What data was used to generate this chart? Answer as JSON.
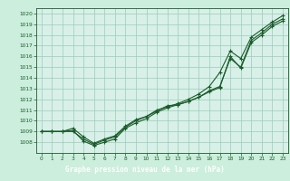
{
  "title": "Graphe pression niveau de la mer (hPa)",
  "xlim": [
    -0.5,
    23.5
  ],
  "ylim": [
    1007.0,
    1020.5
  ],
  "xticks": [
    0,
    1,
    2,
    3,
    4,
    5,
    6,
    7,
    8,
    9,
    10,
    11,
    12,
    13,
    14,
    15,
    16,
    17,
    18,
    19,
    20,
    21,
    22,
    23
  ],
  "yticks": [
    1008,
    1009,
    1010,
    1011,
    1012,
    1013,
    1014,
    1015,
    1016,
    1017,
    1018,
    1019,
    1020
  ],
  "bg_color": "#cceedd",
  "plot_bg": "#d8f0e8",
  "grid_color": "#99ccbb",
  "line_color": "#1a5c2a",
  "title_bg": "#2d7a3a",
  "title_fg": "#ffffff",
  "line1_x": [
    0,
    1,
    2,
    3,
    4,
    5,
    6,
    7,
    8,
    9,
    10,
    11,
    12,
    13,
    14,
    15,
    16,
    17,
    18,
    19,
    20,
    21,
    22,
    23
  ],
  "line1_y": [
    1009,
    1009,
    1009,
    1009,
    1008.3,
    1007.8,
    1008.2,
    1008.5,
    1009.4,
    1010.0,
    1010.4,
    1010.9,
    1011.4,
    1011.5,
    1011.8,
    1012.2,
    1012.8,
    1013.2,
    1015.8,
    1015.0,
    1017.5,
    1018.2,
    1019.0,
    1019.5
  ],
  "line2_x": [
    0,
    1,
    2,
    3,
    4,
    5,
    6,
    7,
    8,
    9,
    10,
    11,
    12,
    13,
    14,
    15,
    16,
    17,
    18,
    19,
    20,
    21,
    22,
    23
  ],
  "line2_y": [
    1009,
    1009,
    1009,
    1009.3,
    1008.5,
    1007.9,
    1008.3,
    1008.6,
    1009.5,
    1010.1,
    1010.4,
    1011.0,
    1011.3,
    1011.6,
    1012.0,
    1012.5,
    1013.2,
    1014.5,
    1016.5,
    1015.8,
    1017.8,
    1018.5,
    1019.2,
    1019.8
  ],
  "line3_x": [
    0,
    1,
    2,
    3,
    4,
    5,
    6,
    7,
    8,
    9,
    10,
    11,
    12,
    13,
    14,
    15,
    16,
    17,
    18,
    19,
    20,
    21,
    22,
    23
  ],
  "line3_y": [
    1009,
    1009,
    1009,
    1009.1,
    1008.1,
    1007.7,
    1008.0,
    1008.3,
    1009.3,
    1009.8,
    1010.2,
    1010.8,
    1011.2,
    1011.5,
    1011.8,
    1012.2,
    1012.7,
    1013.1,
    1016.0,
    1014.9,
    1017.3,
    1018.0,
    1018.8,
    1019.3
  ]
}
